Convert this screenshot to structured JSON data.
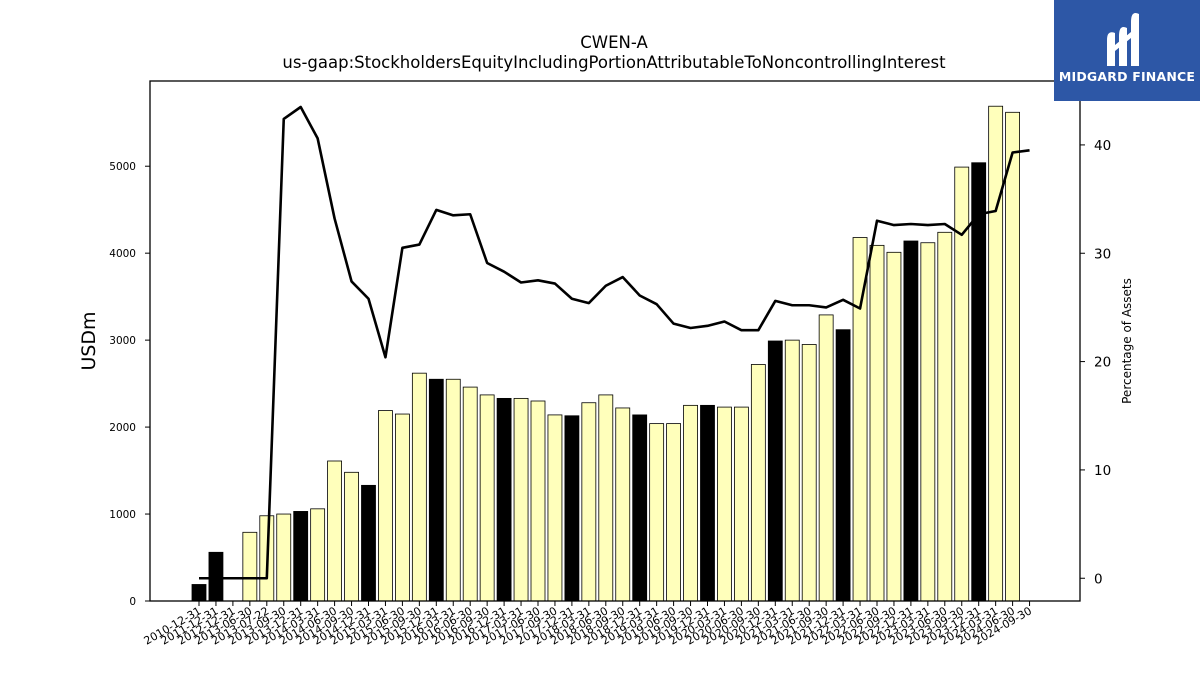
{
  "logo": {
    "brand": "MIDGARD FINANCE",
    "icon": "midgard-m-logo-icon",
    "color": "#2d57a6"
  },
  "chart_data": {
    "type": "bar",
    "title": "CWEN-A",
    "subtitle": "us-gaap:StockholdersEquityIncludingPortionAttributableToNoncontrollingInterest",
    "ylabel": "USDm",
    "y2label": "Percentage of Assets",
    "ylim": [
      0,
      5980
    ],
    "y2lim": [
      -2.1,
      45.9
    ],
    "yticks": [
      0,
      1000,
      2000,
      3000,
      4000,
      5000
    ],
    "y2ticks": [
      0,
      10,
      20,
      30,
      40
    ],
    "grid": false,
    "colors": {
      "annual_bar": "#000000",
      "quarter_bar": "#ffffbb",
      "bar_edge": "#000000",
      "line": "#000000"
    },
    "categories": [
      "2010-12-31",
      "2011-12-31",
      "2012-12-31",
      "2013-06-30",
      "2013-07-22",
      "2013-09-30",
      "2013-12-31",
      "2014-03-31",
      "2014-06-30",
      "2014-09-30",
      "2014-12-31",
      "2015-03-31",
      "2015-06-30",
      "2015-09-30",
      "2015-12-31",
      "2016-03-31",
      "2016-06-30",
      "2016-09-30",
      "2016-12-31",
      "2017-03-31",
      "2017-06-30",
      "2017-09-30",
      "2017-12-31",
      "2018-03-31",
      "2018-06-30",
      "2018-09-30",
      "2018-12-31",
      "2019-03-31",
      "2019-06-30",
      "2019-09-30",
      "2019-12-31",
      "2020-03-31",
      "2020-06-30",
      "2020-09-30",
      "2020-12-31",
      "2021-03-31",
      "2021-06-30",
      "2021-09-30",
      "2021-12-31",
      "2022-03-31",
      "2022-06-30",
      "2022-09-30",
      "2022-12-31",
      "2023-03-31",
      "2023-06-30",
      "2023-09-30",
      "2023-12-31",
      "2024-03-31",
      "2024-06-30",
      "2024-09-30"
    ],
    "annual": [
      true,
      true,
      true,
      false,
      false,
      false,
      true,
      false,
      false,
      false,
      true,
      false,
      false,
      false,
      true,
      false,
      false,
      false,
      true,
      false,
      false,
      false,
      true,
      false,
      false,
      false,
      true,
      false,
      false,
      false,
      true,
      false,
      false,
      false,
      true,
      false,
      false,
      false,
      true,
      false,
      false,
      false,
      true,
      false,
      false,
      false,
      true,
      false,
      false,
      false
    ],
    "series": [
      {
        "name": "USDm",
        "kind": "bar",
        "values": [
          190,
          560,
          0,
          790,
          980,
          1000,
          1030,
          1060,
          1610,
          1480,
          1330,
          2190,
          2150,
          2620,
          2550,
          2550,
          2460,
          2370,
          2330,
          2330,
          2300,
          2140,
          2130,
          2280,
          2370,
          2220,
          2140,
          2040,
          2040,
          2250,
          2250,
          2230,
          2230,
          2720,
          2990,
          3000,
          2950,
          3290,
          3120,
          4180,
          4090,
          4010,
          4140,
          4120,
          4240,
          4990,
          5040,
          5690,
          5620,
          null
        ]
      },
      {
        "name": "Percentage of Assets",
        "kind": "line",
        "axis": "right",
        "values": [
          0,
          0,
          0,
          0,
          0,
          42.4,
          43.5,
          40.6,
          33.2,
          27.4,
          25.8,
          20.4,
          30.5,
          30.8,
          34,
          33.5,
          33.6,
          29.1,
          28.3,
          27.3,
          27.5,
          27.2,
          25.8,
          25.4,
          27,
          27.8,
          26.1,
          25.3,
          23.5,
          23.1,
          23.3,
          23.7,
          22.9,
          22.9,
          25.6,
          25.2,
          25.2,
          25,
          25.7,
          24.9,
          33,
          32.6,
          32.7,
          32.6,
          32.7,
          31.7,
          33.6,
          33.9,
          39.3,
          39.5
        ]
      }
    ]
  }
}
